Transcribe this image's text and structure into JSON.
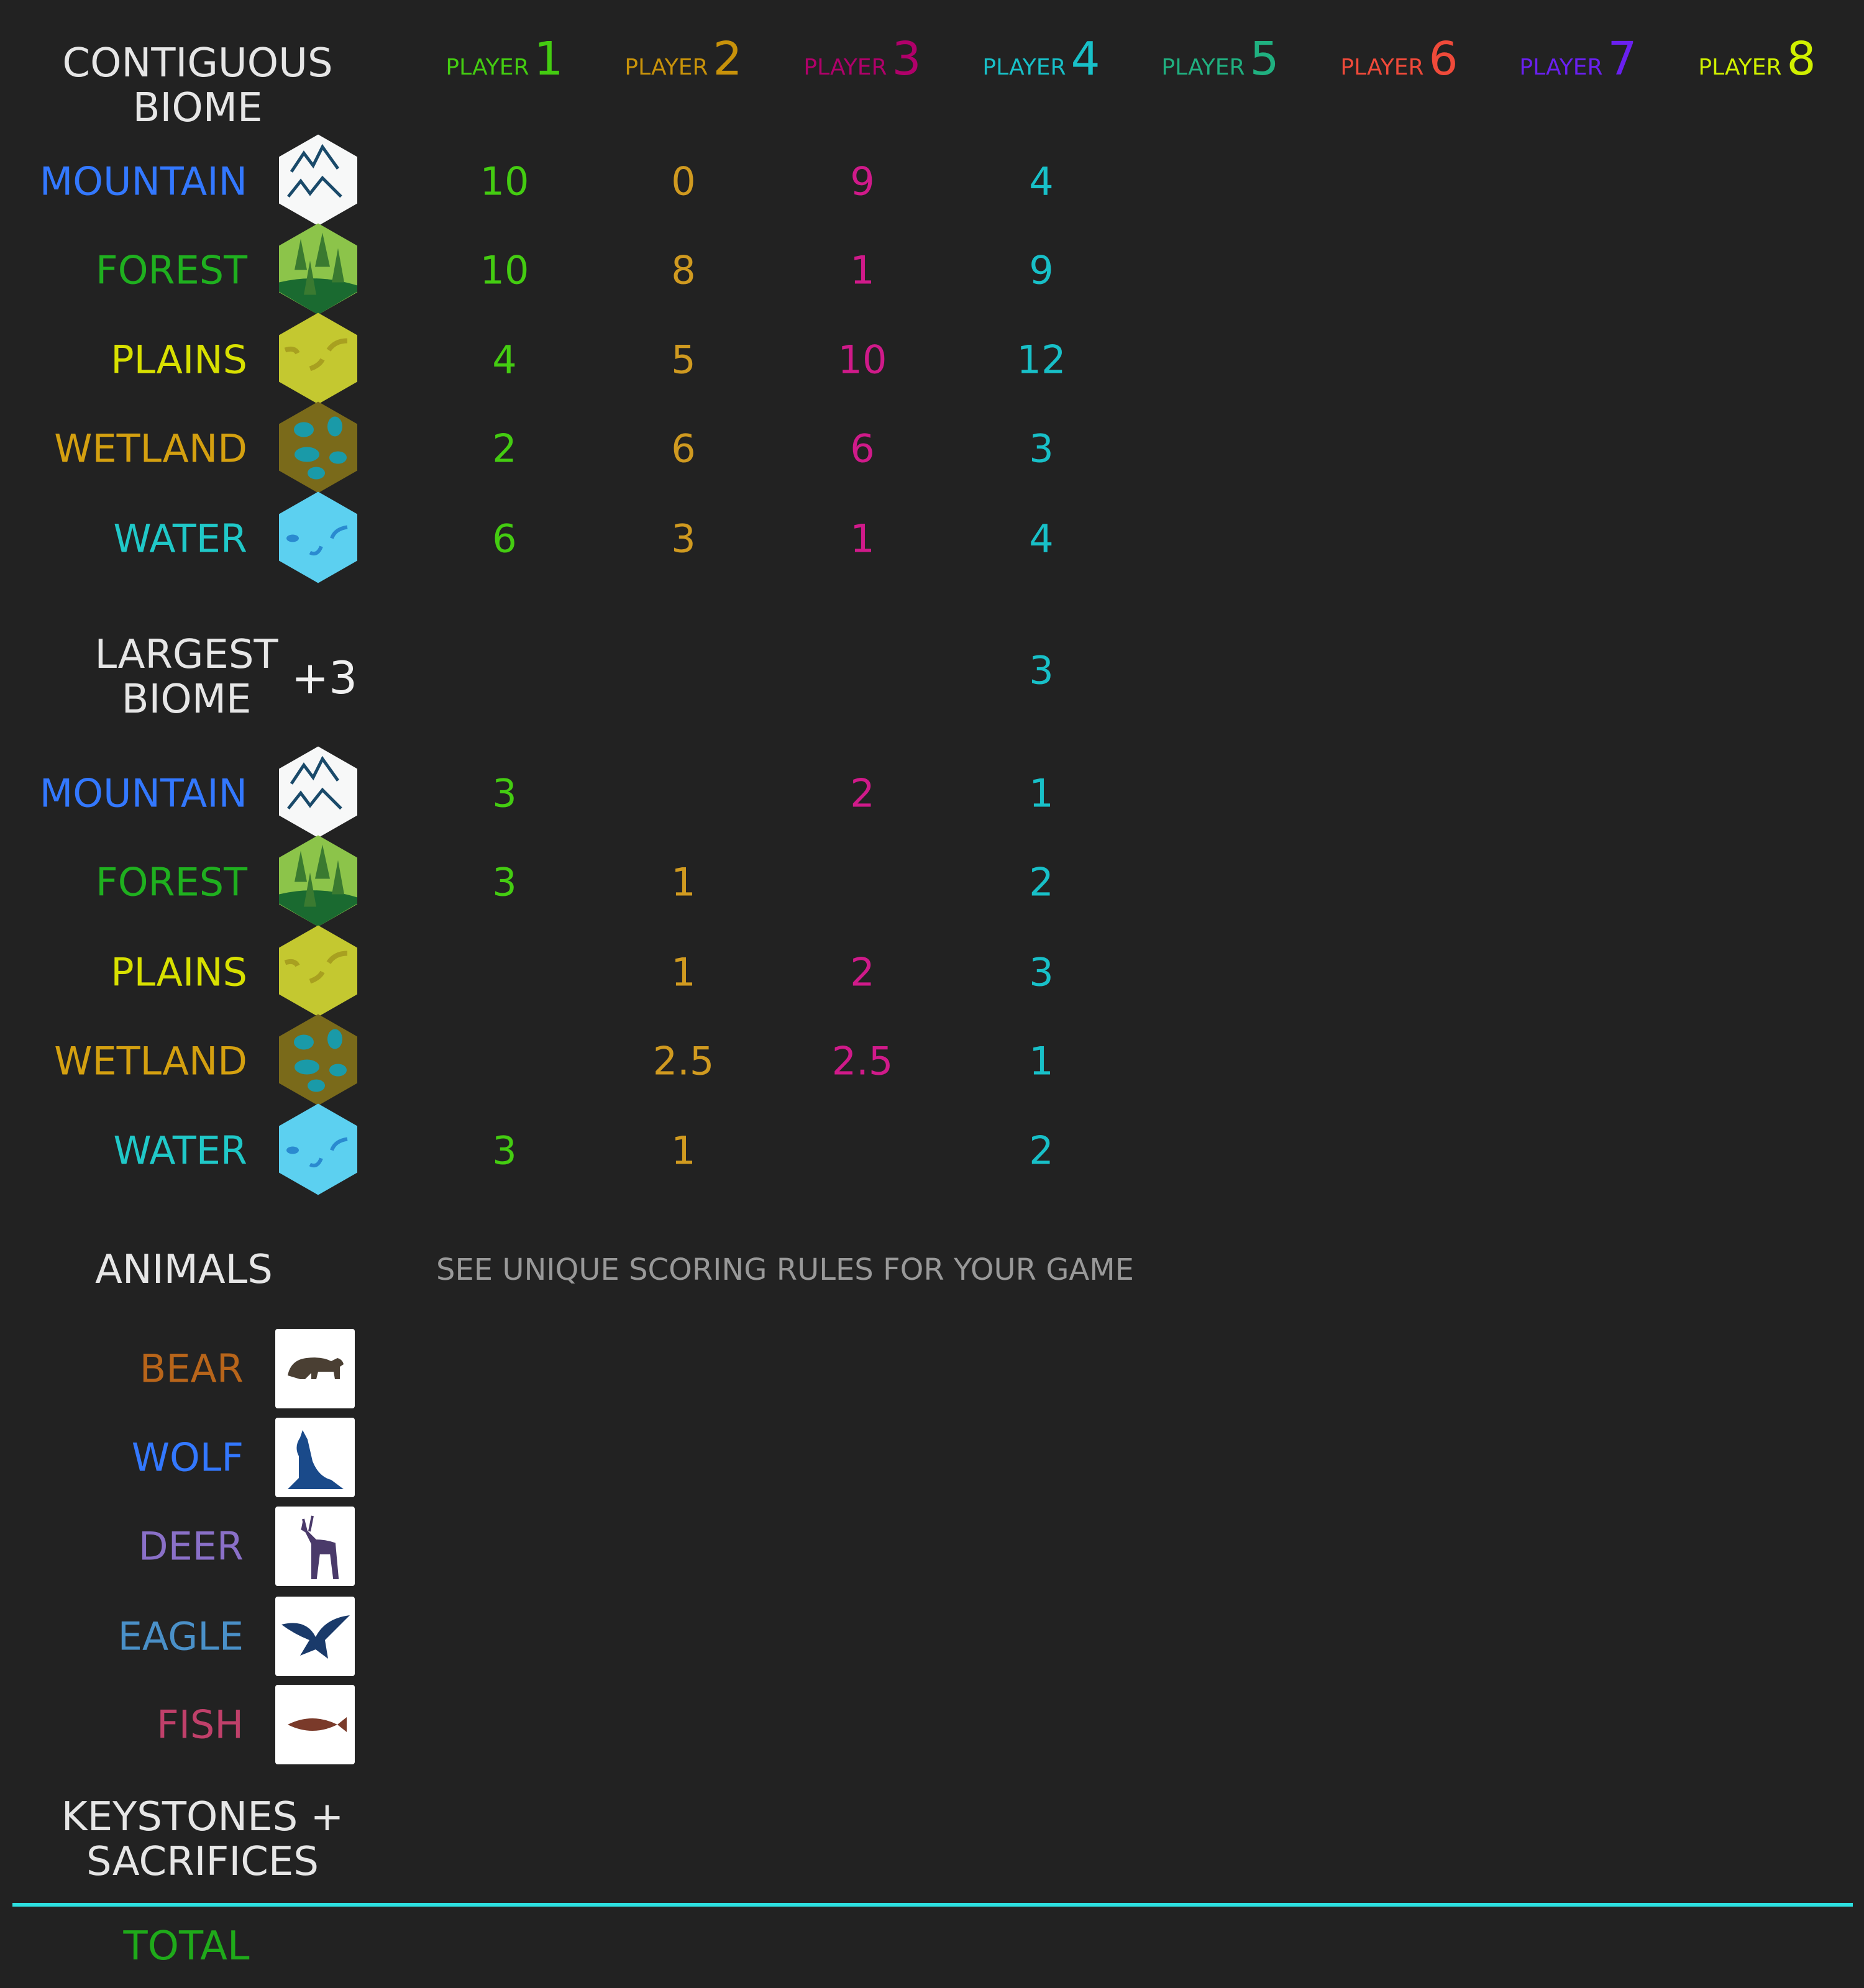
{
  "header": {
    "title_line1": "CONTIGUOUS",
    "title_line2": "BIOME",
    "player_word": "PLAYER"
  },
  "players": [
    {
      "num": "1",
      "color": "#44cc11",
      "value_color": "#44cc11"
    },
    {
      "num": "2",
      "color": "#c8920a",
      "value_color": "#d09a20"
    },
    {
      "num": "3",
      "color": "#b0006a",
      "value_color": "#d01a8a"
    },
    {
      "num": "4",
      "color": "#18c0c8",
      "value_color": "#18c0c8"
    },
    {
      "num": "5",
      "color": "#20b080",
      "value_color": "#20b080"
    },
    {
      "num": "6",
      "color": "#f04a3a",
      "value_color": "#f04a3a"
    },
    {
      "num": "7",
      "color": "#6a20f0",
      "value_color": "#6a20f0"
    },
    {
      "num": "8",
      "color": "#d0f000",
      "value_color": "#d0f000"
    }
  ],
  "biomes": [
    {
      "label": "MOUNTAIN",
      "color": "#3378ff",
      "icon": "mountain-hex-icon",
      "contiguous": [
        "10",
        "0",
        "9",
        "4"
      ],
      "largest": [
        "3",
        "",
        "2",
        "1"
      ]
    },
    {
      "label": "FOREST",
      "color": "#1fb01f",
      "icon": "forest-hex-icon",
      "contiguous": [
        "10",
        "8",
        "1",
        "9"
      ],
      "largest": [
        "3",
        "1",
        "",
        "2"
      ]
    },
    {
      "label": "PLAINS",
      "color": "#d8e000",
      "icon": "plains-hex-icon",
      "contiguous": [
        "4",
        "5",
        "10",
        "12"
      ],
      "largest": [
        "",
        "1",
        "2",
        "3"
      ]
    },
    {
      "label": "WETLAND",
      "color": "#d4a010",
      "icon": "wetland-hex-icon",
      "contiguous": [
        "2",
        "6",
        "6",
        "3"
      ],
      "largest": [
        "",
        "2.5",
        "2.5",
        "1"
      ]
    },
    {
      "label": "WATER",
      "color": "#20c8c8",
      "icon": "water-hex-icon",
      "contiguous": [
        "6",
        "3",
        "1",
        "4"
      ],
      "largest": [
        "3",
        "1",
        "",
        "2"
      ]
    }
  ],
  "largest_biome": {
    "title_line1": "LARGEST",
    "title_line2": "BIOME",
    "bonus": "+3",
    "values": [
      "",
      "",
      "",
      "3"
    ]
  },
  "animals": {
    "title": "ANIMALS",
    "note": "SEE UNIQUE SCORING RULES FOR YOUR GAME",
    "items": [
      {
        "label": "BEAR",
        "color": "#b8651a",
        "icon": "bear-icon",
        "icon_color": "#4a3f33"
      },
      {
        "label": "WOLF",
        "color": "#3378ff",
        "icon": "wolf-icon",
        "icon_color": "#1a4a8a"
      },
      {
        "label": "DEER",
        "color": "#8a70c8",
        "icon": "deer-icon",
        "icon_color": "#4a3a6a"
      },
      {
        "label": "EAGLE",
        "color": "#4a90c8",
        "icon": "eagle-icon",
        "icon_color": "#1a3a6a"
      },
      {
        "label": "FISH",
        "color": "#c0406a",
        "icon": "fish-icon",
        "icon_color": "#7a3a2a"
      }
    ]
  },
  "keystones": {
    "line1": "KEYSTONES +",
    "line2": "SACRIFICES"
  },
  "total": {
    "label": "TOTAL",
    "color": "#1faa1a"
  },
  "rule_color": "#2de0e0"
}
